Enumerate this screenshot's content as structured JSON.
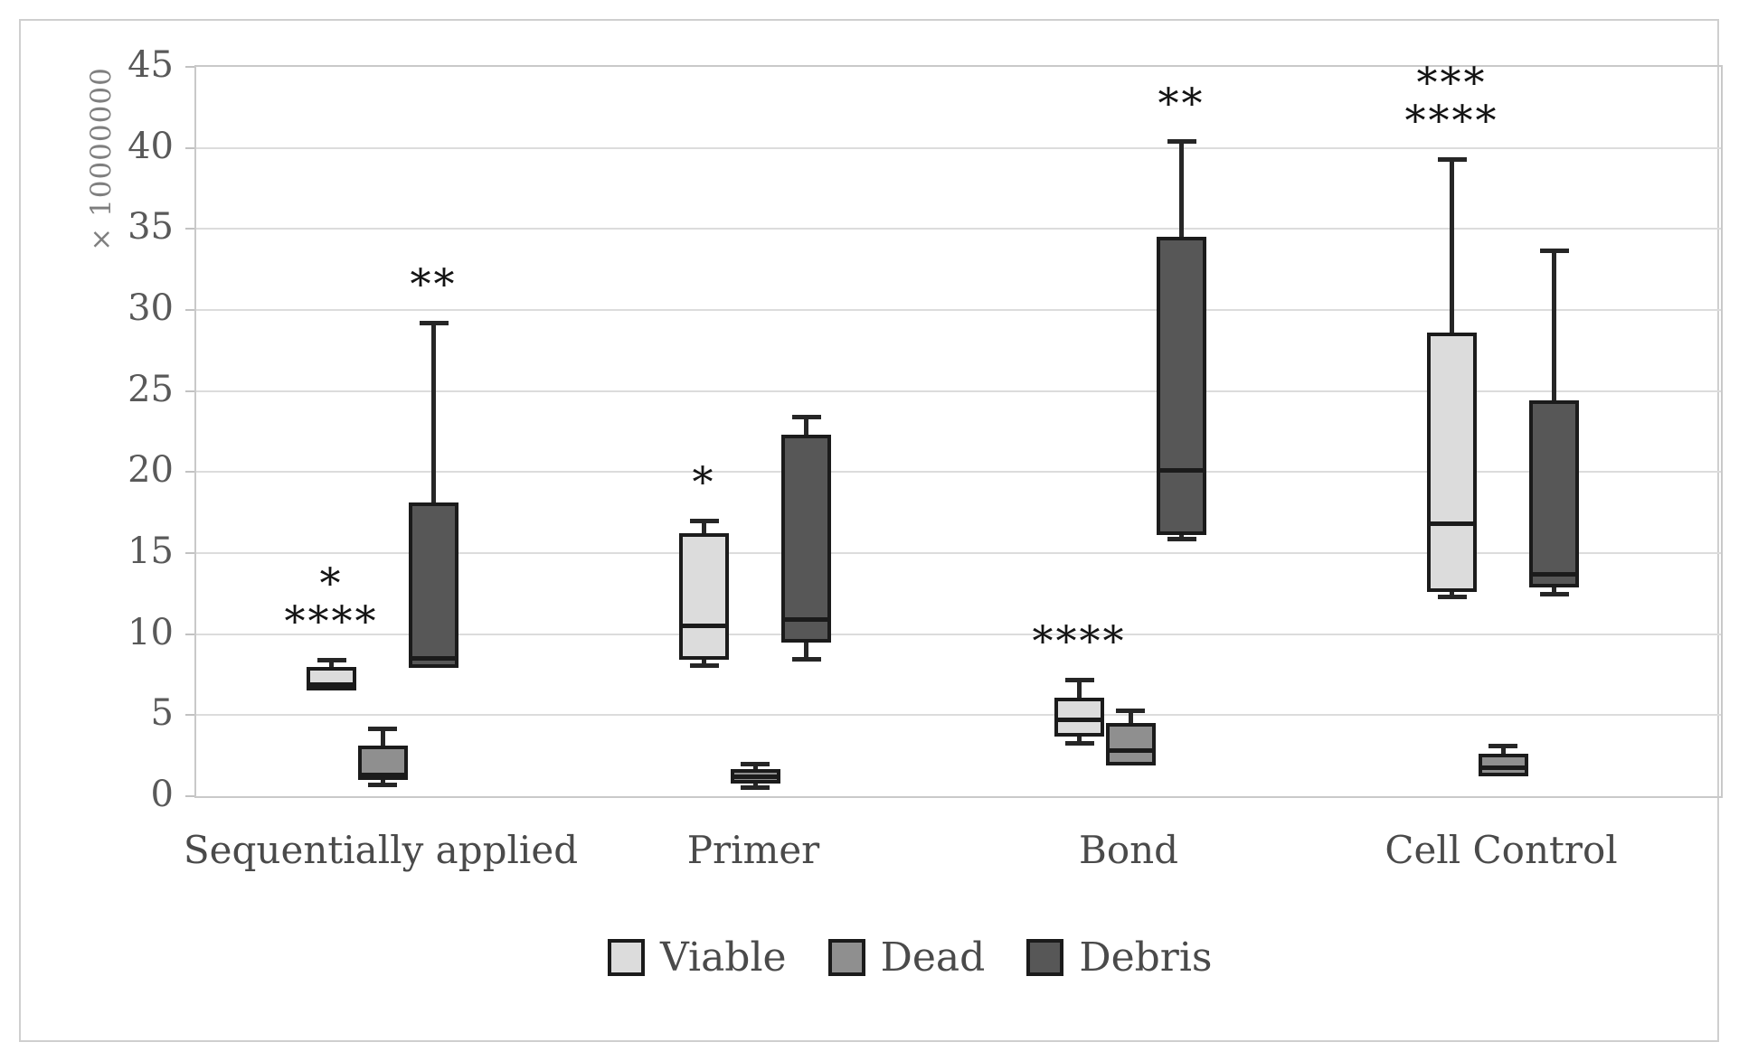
{
  "chart_data": {
    "type": "boxplot",
    "title": "",
    "ylabel": "× 10000000",
    "ylim": [
      0,
      45
    ],
    "yticks": [
      45,
      40,
      35,
      30,
      25,
      20,
      15,
      10,
      5,
      0
    ],
    "grid": "horizontal",
    "legend_position": "bottom",
    "categories": [
      "Sequentially applied",
      "Primer",
      "Bond",
      "Cell Control"
    ],
    "legend": [
      {
        "label": "Viable",
        "color": "#dcdcdc"
      },
      {
        "label": "Dead",
        "color": "#8f8f8f"
      },
      {
        "label": "Debris",
        "color": "#575757"
      }
    ],
    "series": [
      {
        "name": "Viable",
        "color": "#dcdcdc",
        "boxes": [
          {
            "category": "Sequentially applied",
            "whisker_low": 6.5,
            "q1": 6.5,
            "median": 6.9,
            "q3": 8.0,
            "whisker_high": 8.4,
            "significance": [
              "*",
              "****"
            ]
          },
          {
            "category": "Primer",
            "whisker_low": 8.1,
            "q1": 8.4,
            "median": 10.5,
            "q3": 16.2,
            "whisker_high": 17.0,
            "significance": [
              "*"
            ]
          },
          {
            "category": "Bond",
            "whisker_low": 3.3,
            "q1": 3.7,
            "median": 4.7,
            "q3": 6.1,
            "whisker_high": 7.2,
            "significance": [
              "****"
            ]
          },
          {
            "category": "Cell Control",
            "whisker_low": 12.3,
            "q1": 12.6,
            "median": 16.8,
            "q3": 28.6,
            "whisker_high": 39.3,
            "significance": [
              "***",
              "****"
            ]
          }
        ]
      },
      {
        "name": "Dead",
        "color": "#8f8f8f",
        "boxes": [
          {
            "category": "Sequentially applied",
            "whisker_low": 0.7,
            "q1": 1.0,
            "median": 1.3,
            "q3": 3.1,
            "whisker_high": 4.2,
            "significance": []
          },
          {
            "category": "Primer",
            "whisker_low": 0.55,
            "q1": 0.8,
            "median": 1.2,
            "q3": 1.7,
            "whisker_high": 2.0,
            "significance": []
          },
          {
            "category": "Bond",
            "whisker_low": 1.9,
            "q1": 1.9,
            "median": 2.8,
            "q3": 4.5,
            "whisker_high": 5.3,
            "significance": []
          },
          {
            "category": "Cell Control",
            "whisker_low": 1.2,
            "q1": 1.2,
            "median": 1.75,
            "q3": 2.6,
            "whisker_high": 3.1,
            "significance": []
          }
        ]
      },
      {
        "name": "Debris",
        "color": "#575757",
        "boxes": [
          {
            "category": "Sequentially applied",
            "whisker_low": 7.9,
            "q1": 7.9,
            "median": 8.5,
            "q3": 18.1,
            "whisker_high": 29.2,
            "significance": [
              "**"
            ]
          },
          {
            "category": "Primer",
            "whisker_low": 8.5,
            "q1": 9.5,
            "median": 10.9,
            "q3": 22.3,
            "whisker_high": 23.4,
            "significance": []
          },
          {
            "category": "Bond",
            "whisker_low": 15.9,
            "q1": 16.1,
            "median": 20.1,
            "q3": 34.5,
            "whisker_high": 40.4,
            "significance": [
              "**"
            ]
          },
          {
            "category": "Cell Control",
            "whisker_low": 12.5,
            "q1": 12.9,
            "median": 13.7,
            "q3": 24.4,
            "whisker_high": 33.7,
            "significance": []
          }
        ]
      }
    ]
  }
}
